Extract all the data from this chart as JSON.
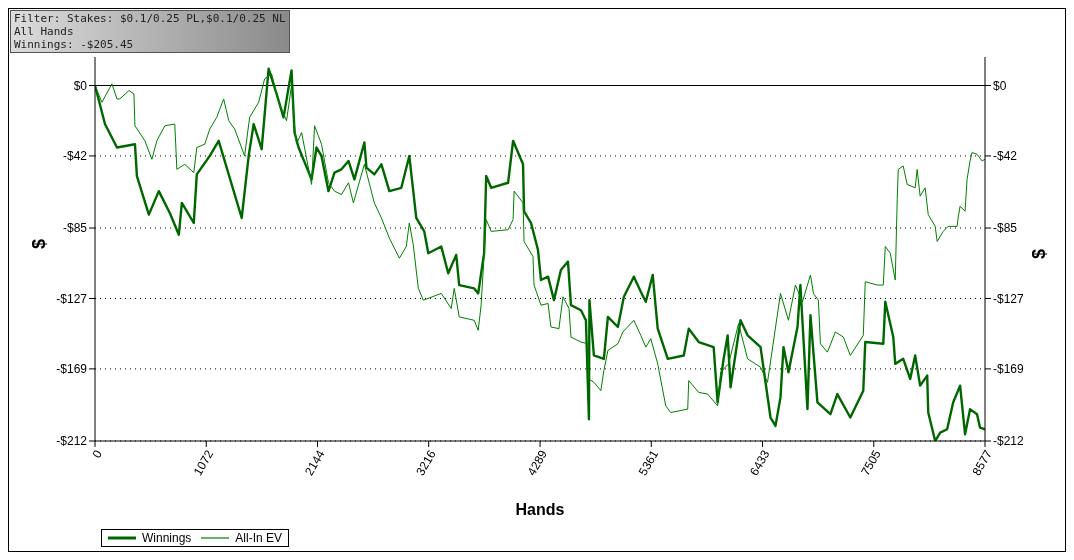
{
  "chart_data": {
    "type": "line",
    "xlabel": "Hands",
    "ylabel": "$",
    "y2label": "$",
    "annotations": [
      "Filter: Stakes: $0.1/0.25 PL,$0.1/0.25 NL",
      "All Hands",
      "Winnings: -$205.45"
    ],
    "xlim": [
      0,
      8577
    ],
    "xticks": [
      0,
      1072,
      2144,
      3216,
      4289,
      5361,
      6433,
      7505,
      8577
    ],
    "ylim": [
      -212,
      17
    ],
    "yticks": [
      {
        "value": 0,
        "label": "$0"
      },
      {
        "value": -42,
        "label": "-$42"
      },
      {
        "value": -85,
        "label": "-$85"
      },
      {
        "value": -127,
        "label": "-$127"
      },
      {
        "value": -169,
        "label": "-$169"
      },
      {
        "value": -212,
        "label": "-$212"
      }
    ],
    "y2lim": [
      -212,
      17
    ],
    "y2ticks": [
      {
        "value": 0,
        "label": "$0"
      },
      {
        "value": -42,
        "label": "-$42"
      },
      {
        "value": -85,
        "label": "-$85"
      },
      {
        "value": -127,
        "label": "-$127"
      },
      {
        "value": -169,
        "label": "-$169"
      },
      {
        "value": -212,
        "label": "-$212"
      }
    ],
    "grid": true,
    "legend": "bottom left",
    "marker": "none",
    "line_style": "solid",
    "ref_lines": [
      {
        "axis": "y",
        "value": 0,
        "color": "#000000"
      }
    ],
    "series": [
      {
        "name": "Winnings",
        "color": "#006600",
        "x": [
          0,
          96,
          212,
          385,
          404,
          519,
          615,
          721,
          808,
          837,
          952,
          981,
          1106,
          1192,
          1414,
          1481,
          1529,
          1606,
          1673,
          1750,
          1817,
          1894,
          1923,
          1962,
          2087,
          2135,
          2183,
          2250,
          2308,
          2375,
          2443,
          2500,
          2596,
          2616,
          2692,
          2760,
          2837,
          2952,
          3029,
          3096,
          3173,
          3212,
          3337,
          3404,
          3481,
          3510,
          3654,
          3693,
          3750,
          3770,
          3818,
          3981,
          4029,
          4125,
          4135,
          4202,
          4269,
          4298,
          4366,
          4423,
          4490,
          4558,
          4587,
          4683,
          4731,
          4760,
          4765,
          4808,
          4904,
          4943,
          5039,
          5097,
          5193,
          5260,
          5308,
          5375,
          5423,
          5520,
          5674,
          5722,
          5818,
          5962,
          6000,
          6058,
          6097,
          6125,
          6221,
          6289,
          6414,
          6510,
          6558,
          6606,
          6635,
          6683,
          6770,
          6798,
          6866,
          6895,
          6962,
          7087,
          7154,
          7279,
          7404,
          7423,
          7597,
          7616,
          7693,
          7712,
          7789,
          7856,
          7904,
          7952,
          8020,
          8030,
          8097,
          8145,
          8212,
          8270,
          8337,
          8385,
          8433,
          8500,
          8529,
          8577
        ],
        "values": [
          0,
          -23,
          -37,
          -35,
          -54,
          -77,
          -63,
          -76,
          -89,
          -70,
          -82,
          -53,
          -42,
          -33,
          -79,
          -42,
          -23,
          -38,
          10,
          -5,
          -19,
          9,
          -28,
          -37,
          -56,
          -37,
          -42,
          -63,
          -52,
          -50,
          -45,
          -56,
          -34,
          -49,
          -53,
          -47,
          -63,
          -61,
          -42,
          -79,
          -87,
          -100,
          -96,
          -112,
          -101,
          -119,
          -121,
          -124,
          -100,
          -54,
          -61,
          -58,
          -33,
          -47,
          -75,
          -82,
          -98,
          -116,
          -114,
          -128,
          -110,
          -105,
          -131,
          -134,
          -140,
          -199,
          -128,
          -161,
          -163,
          -138,
          -144,
          -126,
          -114,
          -123,
          -129,
          -113,
          -145,
          -163,
          -161,
          -145,
          -153,
          -156,
          -189,
          -163,
          -149,
          -180,
          -140,
          -149,
          -156,
          -198,
          -203,
          -186,
          -156,
          -171,
          -144,
          -119,
          -193,
          -137,
          -189,
          -196,
          -184,
          -198,
          -182,
          -153,
          -154,
          -129,
          -150,
          -166,
          -163,
          -175,
          -161,
          -179,
          -173,
          -195,
          -212,
          -207,
          -205,
          -189,
          -179,
          -208,
          -193,
          -196,
          -204,
          -205
        ]
      },
      {
        "name": "All-In EV",
        "color": "#008000",
        "x": [
          0,
          67,
          163,
          212,
          240,
          327,
          375,
          385,
          481,
          548,
          596,
          673,
          769,
          789,
          865,
          952,
          981,
          1058,
          1106,
          1173,
          1240,
          1289,
          1346,
          1442,
          1490,
          1577,
          1635,
          1702,
          1769,
          1846,
          1894,
          1914,
          1942,
          1991,
          2087,
          2116,
          2183,
          2250,
          2308,
          2375,
          2443,
          2490,
          2596,
          2692,
          2760,
          2837,
          2933,
          3000,
          3029,
          3067,
          3116,
          3164,
          3337,
          3433,
          3462,
          3510,
          3654,
          3693,
          3721,
          3770,
          3818,
          3981,
          4029,
          4039,
          4125,
          4135,
          4221,
          4231,
          4298,
          4366,
          4394,
          4471,
          4510,
          4568,
          4587,
          4683,
          4750,
          4760,
          4808,
          4875,
          4904,
          4943,
          5039,
          5087,
          5193,
          5260,
          5308,
          5356,
          5423,
          5500,
          5548,
          5712,
          5722,
          5818,
          5904,
          6000,
          6029,
          6106,
          6202,
          6289,
          6414,
          6481,
          6606,
          6683,
          6750,
          6818,
          6895,
          6924,
          6971,
          6991,
          7058,
          7135,
          7212,
          7279,
          7404,
          7423,
          7539,
          7597,
          7616,
          7664,
          7712,
          7731,
          7741,
          7789,
          7827,
          7904,
          7923,
          7952,
          8000,
          8030,
          8097,
          8116,
          8174,
          8222,
          8308,
          8318,
          8337,
          8385,
          8404,
          8433,
          8452,
          8500,
          8549,
          8577
        ],
        "values": [
          0,
          -10,
          1,
          -8,
          -8,
          -3,
          -5,
          -24,
          -33,
          -44,
          -33,
          -24,
          -23,
          -50,
          -47,
          -52,
          -37,
          -35,
          -26,
          -19,
          -8,
          -21,
          -26,
          -42,
          -19,
          -10,
          4,
          7,
          -10,
          -21,
          0,
          -19,
          -35,
          -28,
          -59,
          -24,
          -35,
          -58,
          -63,
          -65,
          -58,
          -70,
          -47,
          -70,
          -79,
          -91,
          -103,
          -96,
          -82,
          -95,
          -121,
          -128,
          -124,
          -133,
          -121,
          -138,
          -140,
          -146,
          -131,
          -80,
          -87,
          -86,
          -80,
          -63,
          -70,
          -93,
          -102,
          -119,
          -131,
          -130,
          -144,
          -145,
          -126,
          -133,
          -150,
          -153,
          -154,
          -175,
          -177,
          -182,
          -170,
          -158,
          -154,
          -147,
          -140,
          -149,
          -156,
          -151,
          -166,
          -191,
          -195,
          -193,
          -176,
          -183,
          -184,
          -191,
          -171,
          -166,
          -142,
          -163,
          -168,
          -177,
          -124,
          -140,
          -119,
          -129,
          -113,
          -124,
          -128,
          -154,
          -159,
          -147,
          -150,
          -161,
          -149,
          -117,
          -119,
          -119,
          -96,
          -100,
          -116,
          -68,
          -50,
          -48,
          -59,
          -61,
          -50,
          -66,
          -61,
          -77,
          -84,
          -93,
          -87,
          -84,
          -84,
          -79,
          -72,
          -75,
          -56,
          -45,
          -40,
          -41,
          -45,
          -44
        ]
      }
    ]
  }
}
